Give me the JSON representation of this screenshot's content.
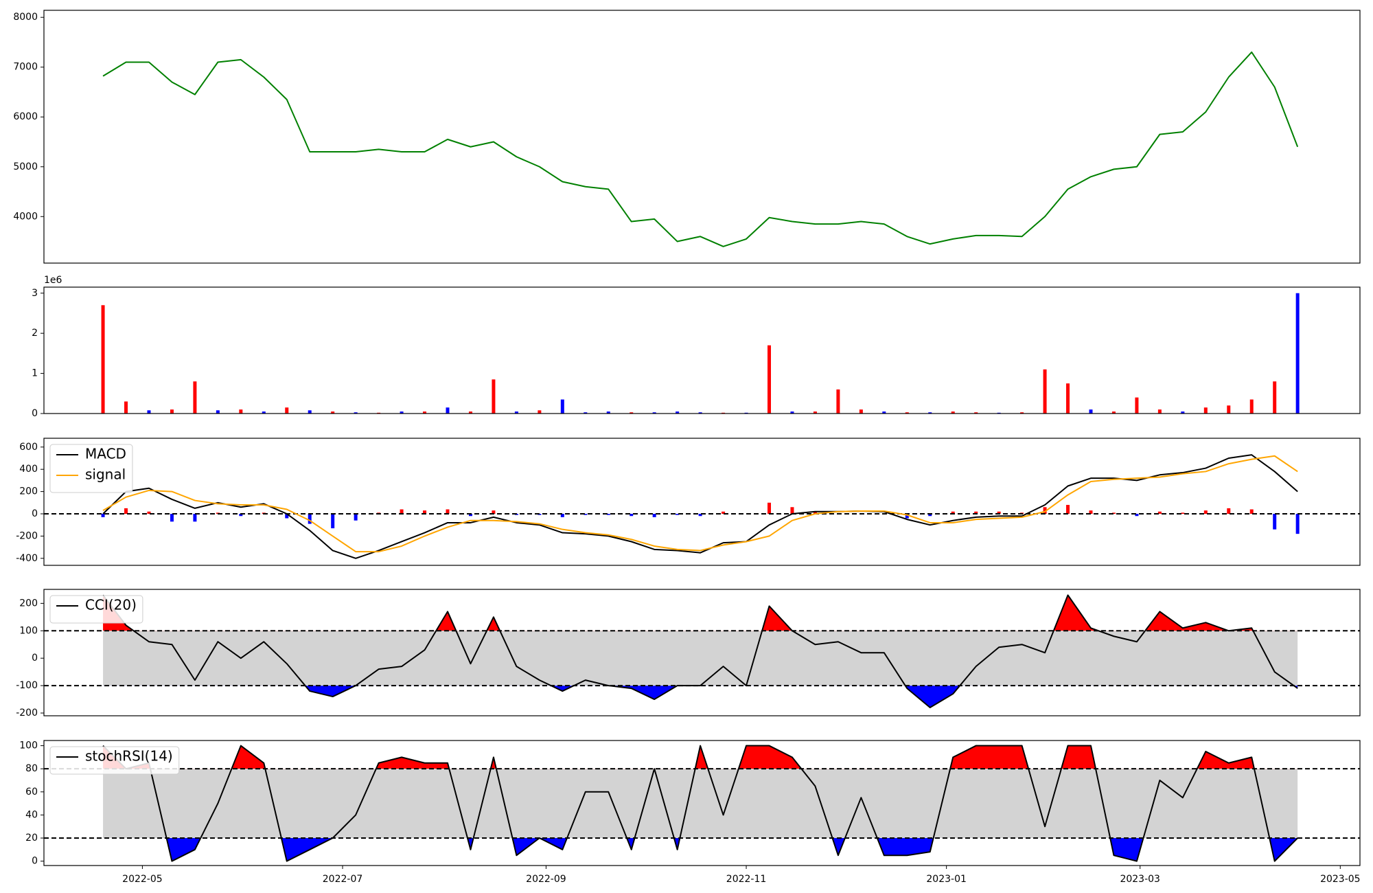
{
  "chart_data": [
    {
      "type": "line",
      "x": [
        108,
        115,
        122,
        129,
        136,
        143,
        150,
        157,
        164,
        171,
        178,
        185,
        192,
        199,
        206,
        213,
        220,
        227,
        234,
        241,
        248,
        255,
        262,
        269,
        276,
        283,
        290,
        297,
        304,
        311,
        318,
        325,
        332,
        339,
        346,
        353,
        360,
        367,
        374,
        381,
        388,
        395,
        402,
        409,
        416,
        423,
        430,
        437,
        444,
        451,
        458,
        465,
        472
      ],
      "xlim": [
        90,
        491
      ],
      "ylim": [
        3066,
        8141
      ],
      "yticks": [
        4000,
        5000,
        6000,
        7000,
        8000
      ],
      "series": [
        {
          "color": "#008000",
          "values": [
            6820,
            7100,
            7100,
            6700,
            6450,
            7100,
            7150,
            6800,
            6350,
            5300,
            5300,
            5300,
            5350,
            5300,
            5300,
            5550,
            5400,
            5500,
            5200,
            5000,
            4700,
            4600,
            4550,
            3900,
            3950,
            3500,
            3600,
            3400,
            3550,
            3980,
            3900,
            3850,
            3850,
            3900,
            3850,
            3600,
            3450,
            3550,
            3620,
            3620,
            3600,
            4000,
            4550,
            4800,
            4950,
            5000,
            5650,
            5700,
            6100,
            6800,
            7300,
            6600,
            5400
          ]
        }
      ]
    },
    {
      "type": "bar",
      "x": [
        108,
        115,
        122,
        129,
        136,
        143,
        150,
        157,
        164,
        171,
        178,
        185,
        192,
        199,
        206,
        213,
        220,
        227,
        234,
        241,
        248,
        255,
        262,
        269,
        276,
        283,
        290,
        297,
        304,
        311,
        318,
        325,
        332,
        339,
        346,
        353,
        360,
        367,
        374,
        381,
        388,
        395,
        402,
        409,
        416,
        423,
        430,
        437,
        444,
        451,
        458,
        465,
        472
      ],
      "xlim": [
        90,
        491
      ],
      "ylim": [
        0,
        3.15
      ],
      "yticks": [
        0,
        1,
        2,
        3
      ],
      "offset_label": "1e6",
      "values": [
        2.7,
        0.3,
        0.08,
        0.1,
        0.8,
        0.08,
        0.1,
        0.05,
        0.15,
        0.08,
        0.05,
        0.03,
        0.02,
        0.05,
        0.05,
        0.15,
        0.05,
        0.85,
        0.05,
        0.08,
        0.35,
        0.03,
        0.05,
        0.03,
        0.03,
        0.05,
        0.03,
        0.02,
        0.02,
        1.7,
        0.05,
        0.05,
        0.6,
        0.1,
        0.05,
        0.03,
        0.03,
        0.05,
        0.03,
        0.02,
        0.03,
        1.1,
        0.75,
        0.1,
        0.05,
        0.4,
        0.1,
        0.05,
        0.15,
        0.2,
        0.35,
        0.8,
        3.0
      ],
      "bar_colors": [
        "#ff0000",
        "#ff0000",
        "#0000ff",
        "#ff0000",
        "#ff0000",
        "#0000ff",
        "#ff0000",
        "#0000ff",
        "#ff0000",
        "#0000ff",
        "#ff0000",
        "#0000ff",
        "#ff0000",
        "#0000ff",
        "#ff0000",
        "#0000ff",
        "#ff0000",
        "#ff0000",
        "#0000ff",
        "#ff0000",
        "#0000ff",
        "#0000ff",
        "#0000ff",
        "#ff0000",
        "#0000ff",
        "#0000ff",
        "#0000ff",
        "#ff0000",
        "#0000ff",
        "#ff0000",
        "#0000ff",
        "#ff0000",
        "#ff0000",
        "#ff0000",
        "#0000ff",
        "#ff0000",
        "#0000ff",
        "#ff0000",
        "#ff0000",
        "#0000ff",
        "#ff0000",
        "#ff0000",
        "#ff0000",
        "#0000ff",
        "#ff0000",
        "#ff0000",
        "#ff0000",
        "#0000ff",
        "#ff0000",
        "#ff0000",
        "#ff0000",
        "#ff0000",
        "#0000ff"
      ]
    },
    {
      "type": "line",
      "x": [
        108,
        115,
        122,
        129,
        136,
        143,
        150,
        157,
        164,
        171,
        178,
        185,
        192,
        199,
        206,
        213,
        220,
        227,
        234,
        241,
        248,
        255,
        262,
        269,
        276,
        283,
        290,
        297,
        304,
        311,
        318,
        325,
        332,
        339,
        346,
        353,
        360,
        367,
        374,
        381,
        388,
        395,
        402,
        409,
        416,
        423,
        430,
        437,
        444,
        451,
        458,
        465,
        472
      ],
      "xlim": [
        90,
        491
      ],
      "ylim": [
        -463,
        679
      ],
      "yticks": [
        -400,
        -200,
        0,
        200,
        400,
        600
      ],
      "hlines": [
        0
      ],
      "legend": "upper left",
      "series": [
        {
          "name": "MACD",
          "color": "#000000",
          "values": [
            0,
            200,
            230,
            130,
            50,
            100,
            60,
            90,
            0,
            -150,
            -330,
            -400,
            -330,
            -250,
            -170,
            -80,
            -80,
            -30,
            -80,
            -100,
            -170,
            -180,
            -200,
            -250,
            -320,
            -330,
            -350,
            -260,
            -250,
            -100,
            0,
            20,
            20,
            25,
            20,
            -50,
            -100,
            -60,
            -30,
            -20,
            -20,
            80,
            250,
            320,
            320,
            300,
            350,
            370,
            410,
            500,
            530,
            380,
            200
          ]
        },
        {
          "name": "signal",
          "color": "#ffa500",
          "values": [
            30,
            150,
            210,
            200,
            120,
            90,
            80,
            80,
            40,
            -60,
            -200,
            -340,
            -340,
            -290,
            -200,
            -120,
            -60,
            -60,
            -70,
            -90,
            -140,
            -170,
            -190,
            -230,
            -290,
            -320,
            -330,
            -280,
            -250,
            -200,
            -60,
            0,
            20,
            25,
            25,
            -10,
            -80,
            -80,
            -50,
            -40,
            -30,
            20,
            170,
            290,
            310,
            320,
            330,
            360,
            380,
            450,
            490,
            520,
            380
          ]
        }
      ],
      "histogram": {
        "colors": [
          "#ff0000",
          "#0000ff"
        ],
        "values": [
          -30,
          50,
          20,
          -70,
          -70,
          10,
          -20,
          10,
          -40,
          -90,
          -130,
          -60,
          10,
          40,
          30,
          40,
          -20,
          30,
          -10,
          -10,
          -30,
          -10,
          -10,
          -20,
          -30,
          -10,
          -20,
          20,
          0,
          100,
          60,
          20,
          0,
          0,
          -5,
          -40,
          -20,
          20,
          20,
          20,
          10,
          60,
          80,
          30,
          10,
          -20,
          20,
          10,
          30,
          50,
          40,
          -140,
          -180
        ]
      }
    },
    {
      "type": "line",
      "x": [
        108,
        115,
        122,
        129,
        136,
        143,
        150,
        157,
        164,
        171,
        178,
        185,
        192,
        199,
        206,
        213,
        220,
        227,
        234,
        241,
        248,
        255,
        262,
        269,
        276,
        283,
        290,
        297,
        304,
        311,
        318,
        325,
        332,
        339,
        346,
        353,
        360,
        367,
        374,
        381,
        388,
        395,
        402,
        409,
        416,
        423,
        430,
        437,
        444,
        451,
        458,
        465,
        472
      ],
      "xlim": [
        90,
        491
      ],
      "ylim": [
        -210,
        251
      ],
      "yticks": [
        -200,
        -100,
        0,
        100,
        200
      ],
      "hlines": [
        -100,
        100
      ],
      "band_colors": {
        "band": "#d3d3d3",
        "above": "#ff0000",
        "below": "#0000ff"
      },
      "legend": "upper left",
      "series": [
        {
          "name": "CCI(20)",
          "color": "#000000",
          "values": [
            230,
            120,
            60,
            50,
            -80,
            60,
            0,
            60,
            -20,
            -120,
            -140,
            -100,
            -40,
            -30,
            30,
            170,
            -20,
            150,
            -30,
            -80,
            -120,
            -80,
            -100,
            -110,
            -150,
            -100,
            -100,
            -30,
            -100,
            190,
            100,
            50,
            60,
            20,
            20,
            -110,
            -180,
            -130,
            -30,
            40,
            50,
            20,
            230,
            110,
            80,
            60,
            170,
            110,
            130,
            100,
            110,
            -50,
            -110
          ]
        }
      ]
    },
    {
      "type": "line",
      "x": [
        108,
        115,
        122,
        129,
        136,
        143,
        150,
        157,
        164,
        171,
        178,
        185,
        192,
        199,
        206,
        213,
        220,
        227,
        234,
        241,
        248,
        255,
        262,
        269,
        276,
        283,
        290,
        297,
        304,
        311,
        318,
        325,
        332,
        339,
        346,
        353,
        360,
        367,
        374,
        381,
        388,
        395,
        402,
        409,
        416,
        423,
        430,
        437,
        444,
        451,
        458,
        465,
        472
      ],
      "xlim": [
        90,
        491
      ],
      "xticks": [
        {
          "value": 120,
          "label": "2022-05"
        },
        {
          "value": 181,
          "label": "2022-07"
        },
        {
          "value": 243,
          "label": "2022-09"
        },
        {
          "value": 304,
          "label": "2022-11"
        },
        {
          "value": 365,
          "label": "2023-01"
        },
        {
          "value": 424,
          "label": "2023-03"
        },
        {
          "value": 485,
          "label": "2023-05"
        }
      ],
      "ylim": [
        -3.8,
        104.5
      ],
      "yticks": [
        0,
        20,
        40,
        60,
        80,
        100
      ],
      "hlines": [
        20,
        80
      ],
      "band_colors": {
        "band": "#d3d3d3",
        "above": "#ff0000",
        "below": "#0000ff"
      },
      "legend": "upper left",
      "series": [
        {
          "name": "stochRSI(14)",
          "color": "#000000",
          "values": [
            100,
            80,
            85,
            0,
            10,
            50,
            100,
            85,
            0,
            10,
            20,
            40,
            85,
            90,
            85,
            85,
            10,
            90,
            5,
            20,
            10,
            60,
            60,
            10,
            80,
            10,
            100,
            40,
            100,
            100,
            90,
            65,
            5,
            55,
            5,
            5,
            8,
            90,
            100,
            100,
            100,
            30,
            100,
            100,
            5,
            0,
            70,
            55,
            95,
            85,
            90,
            0,
            20
          ]
        }
      ]
    }
  ]
}
